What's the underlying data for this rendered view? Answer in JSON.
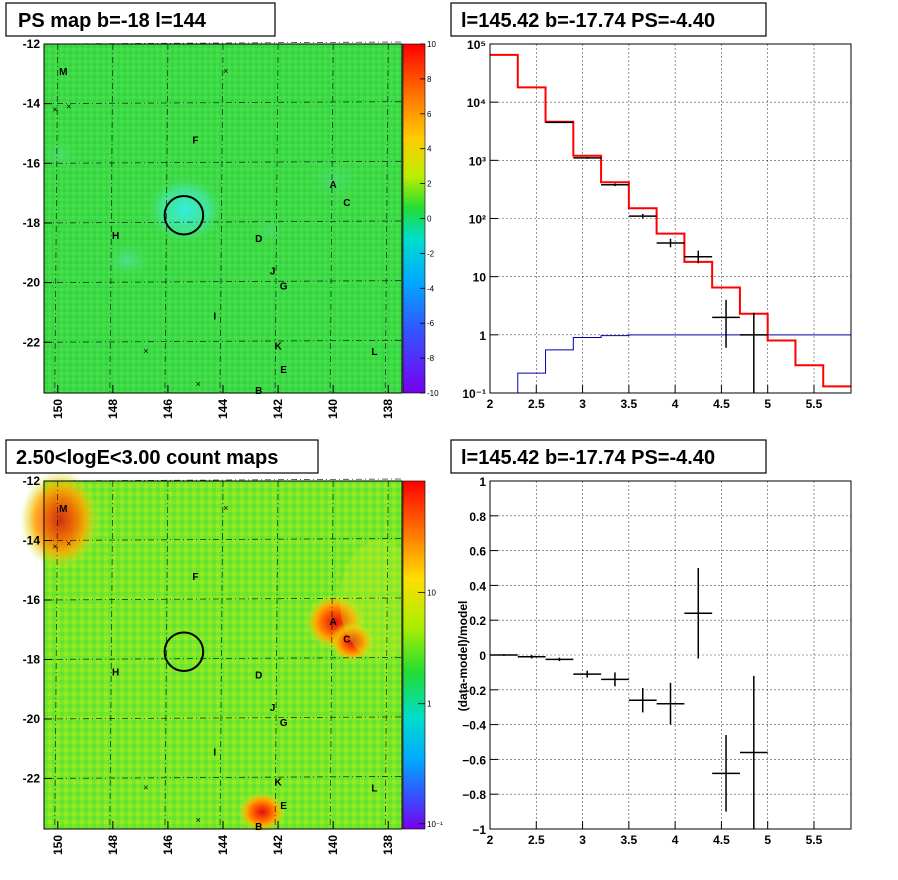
{
  "panels": {
    "ps_map": {
      "title": "PS map b=-18 l=144"
    },
    "spectrum": {
      "title": "l=145.42 b=-17.74 PS=-4.40"
    },
    "count_map": {
      "title": "2.50<logE<3.00 count maps"
    },
    "residual": {
      "title": "l=145.42 b=-17.74 PS=-4.40",
      "ylabel": "(data-model)/model"
    }
  },
  "colors": {
    "model_line": "#ff0000",
    "background_line": "#0000aa",
    "data": "#000000",
    "ps_map_fill": "#33dd44",
    "count_map_fill": "#66ee22"
  },
  "chart_data": [
    {
      "type": "heatmap",
      "name": "ps_map",
      "xlim": [
        150.5,
        137.5
      ],
      "ylim": [
        -23.7,
        -12
      ],
      "x_ticks": [
        150,
        148,
        146,
        144,
        142,
        140,
        138
      ],
      "y_ticks": [
        -12,
        -14,
        -16,
        -18,
        -20,
        -22
      ],
      "colorbar": {
        "min": -10,
        "max": 10,
        "ticks": [
          10,
          8,
          6,
          4,
          2,
          0,
          -2,
          -4,
          -6,
          -8,
          -10
        ]
      },
      "sources": [
        {
          "label": "M",
          "l": 149.8,
          "b": -12.9
        },
        {
          "label": "F",
          "l": 145.0,
          "b": -15.2
        },
        {
          "label": "A",
          "l": 140.0,
          "b": -16.7
        },
        {
          "label": "C",
          "l": 139.5,
          "b": -17.3
        },
        {
          "label": "H",
          "l": 147.9,
          "b": -18.4
        },
        {
          "label": "D",
          "l": 142.7,
          "b": -18.5
        },
        {
          "label": "J",
          "l": 142.2,
          "b": -19.6
        },
        {
          "label": "G",
          "l": 141.8,
          "b": -20.1
        },
        {
          "label": "I",
          "l": 144.3,
          "b": -21.1
        },
        {
          "label": "K",
          "l": 142.0,
          "b": -22.1
        },
        {
          "label": "L",
          "l": 138.5,
          "b": -22.3
        },
        {
          "label": "E",
          "l": 141.8,
          "b": -22.9
        },
        {
          "label": "B",
          "l": 142.7,
          "b": -23.6
        }
      ],
      "crosses": [
        {
          "l": 150.1,
          "b": -14.2
        },
        {
          "l": 149.6,
          "b": -14.1
        },
        {
          "l": 143.9,
          "b": -12.9
        },
        {
          "l": 146.8,
          "b": -22.3
        },
        {
          "l": 144.9,
          "b": -23.4
        }
      ],
      "circle": {
        "l": 145.42,
        "b": -17.74,
        "r": 0.7
      }
    },
    {
      "type": "line",
      "name": "spectrum",
      "log_y": true,
      "xlim": [
        2,
        5.9
      ],
      "ylim": [
        0.1,
        100000
      ],
      "x_ticks": [
        2,
        2.5,
        3,
        3.5,
        4,
        4.5,
        5,
        5.5
      ],
      "x_tick_labels": [
        "2",
        "2.5",
        "3",
        "3.5",
        "4",
        "4.5",
        "5",
        "5.5"
      ],
      "y_tick_labels": [
        "10⁻¹",
        "1",
        "10",
        "10²",
        "10³",
        "10⁴",
        "10⁵"
      ],
      "bin_edges": [
        2.0,
        2.3,
        2.6,
        2.9,
        3.2,
        3.5,
        3.8,
        4.1,
        4.4,
        4.7,
        5.0,
        5.3,
        5.6,
        5.9
      ],
      "model": [
        65000,
        18000,
        4600,
        1200,
        420,
        150,
        55,
        18,
        6.5,
        2.3,
        0.8,
        0.3,
        0.13
      ],
      "background": [
        0.1,
        0.22,
        0.55,
        0.9,
        0.97,
        1.0,
        1.0,
        1.0,
        1.0,
        1.0,
        1.0,
        1.0,
        1.0
      ],
      "data_points": [
        {
          "x": 2.75,
          "y": 4500,
          "lo": 4400,
          "hi": 4600,
          "xerr": 0.15
        },
        {
          "x": 3.05,
          "y": 1100,
          "lo": 1060,
          "hi": 1140,
          "xerr": 0.15
        },
        {
          "x": 3.35,
          "y": 380,
          "lo": 360,
          "hi": 400,
          "xerr": 0.15
        },
        {
          "x": 3.65,
          "y": 110,
          "lo": 100,
          "hi": 120,
          "xerr": 0.15
        },
        {
          "x": 3.95,
          "y": 38,
          "lo": 32,
          "hi": 45,
          "xerr": 0.15
        },
        {
          "x": 4.25,
          "y": 22,
          "lo": 17,
          "hi": 28,
          "xerr": 0.15
        },
        {
          "x": 4.55,
          "y": 2,
          "lo": 0.6,
          "hi": 4,
          "xerr": 0.15
        },
        {
          "x": 4.85,
          "y": 1,
          "lo": 0.1,
          "hi": 2.4,
          "xerr": 0.15
        }
      ]
    },
    {
      "type": "heatmap",
      "name": "count_map",
      "xlim": [
        150.5,
        137.5
      ],
      "ylim": [
        -23.7,
        -12
      ],
      "x_ticks": [
        150,
        148,
        146,
        144,
        142,
        140,
        138
      ],
      "y_ticks": [
        -12,
        -14,
        -16,
        -18,
        -20,
        -22
      ],
      "colorbar": {
        "log": true,
        "ticks": [
          "10",
          "1",
          "10⁻¹"
        ]
      },
      "hotspots": [
        "M",
        "A",
        "C",
        "B"
      ]
    },
    {
      "type": "scatter",
      "name": "residual",
      "xlim": [
        2,
        5.9
      ],
      "ylim": [
        -1,
        1
      ],
      "x_ticks": [
        2,
        2.5,
        3,
        3.5,
        4,
        4.5,
        5,
        5.5
      ],
      "x_tick_labels": [
        "2",
        "2.5",
        "3",
        "3.5",
        "4",
        "4.5",
        "5",
        "5.5"
      ],
      "y_ticks": [
        -1,
        -0.8,
        -0.6,
        -0.4,
        -0.2,
        0,
        0.2,
        0.4,
        0.6,
        0.8,
        1
      ],
      "y_tick_labels": [
        "−1",
        "−0.8",
        "−0.6",
        "−0.4",
        "−0.2",
        "0",
        "0.2",
        "0.4",
        "0.6",
        "0.8",
        "1"
      ],
      "ylabel": "(data-model)/model",
      "data_points": [
        {
          "x": 2.15,
          "y": 0.0,
          "err": 0.005,
          "xerr": 0.15
        },
        {
          "x": 2.45,
          "y": -0.01,
          "err": 0.01,
          "xerr": 0.15
        },
        {
          "x": 2.75,
          "y": -0.025,
          "err": 0.01,
          "xerr": 0.15
        },
        {
          "x": 3.05,
          "y": -0.11,
          "err": 0.02,
          "xerr": 0.15
        },
        {
          "x": 3.35,
          "y": -0.14,
          "err": 0.04,
          "xerr": 0.15
        },
        {
          "x": 3.65,
          "y": -0.26,
          "err": 0.07,
          "xerr": 0.15
        },
        {
          "x": 3.95,
          "y": -0.28,
          "err": 0.12,
          "xerr": 0.15
        },
        {
          "x": 4.25,
          "y": 0.24,
          "err": 0.26,
          "xerr": 0.15
        },
        {
          "x": 4.55,
          "y": -0.68,
          "err": 0.22,
          "xerr": 0.15
        },
        {
          "x": 4.85,
          "y": -0.56,
          "err": 0.44,
          "xerr": 0.15
        }
      ]
    }
  ]
}
